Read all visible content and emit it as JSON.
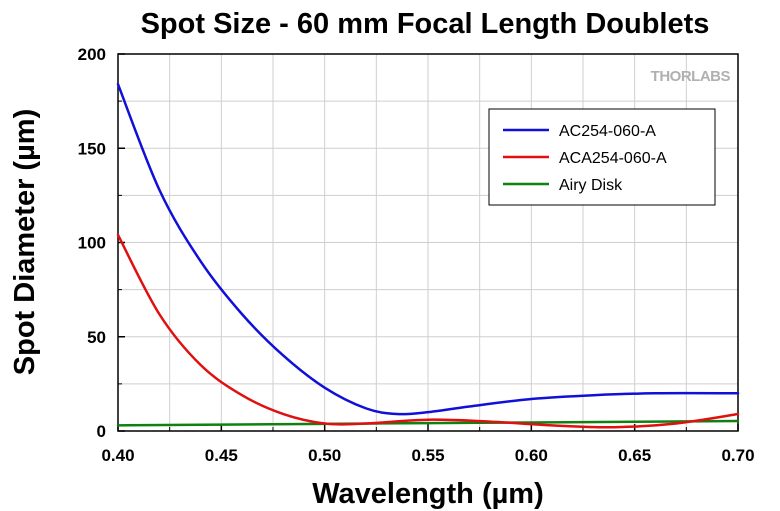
{
  "chart_data": {
    "type": "line",
    "title": "Spot Size - 60 mm Focal Length Doublets",
    "xlabel": "Wavelength (µm)",
    "ylabel": "Spot Diameter (µm)",
    "xlim": [
      0.4,
      0.7
    ],
    "ylim": [
      0,
      200
    ],
    "xticks": [
      "0.40",
      "0.45",
      "0.50",
      "0.55",
      "0.60",
      "0.65",
      "0.70"
    ],
    "yticks": [
      "0",
      "50",
      "100",
      "150",
      "200"
    ],
    "grid": true,
    "legend_position": "top-right",
    "watermark": "THORLABS",
    "series": [
      {
        "name": "AC254-060-A",
        "color": "#1010d8",
        "x": [
          0.4,
          0.42,
          0.44,
          0.46,
          0.48,
          0.5,
          0.52,
          0.535,
          0.55,
          0.57,
          0.6,
          0.63,
          0.66,
          0.7
        ],
        "y": [
          184,
          128,
          90,
          62,
          40,
          23,
          12,
          9,
          10,
          13,
          17,
          19,
          20,
          20
        ]
      },
      {
        "name": "ACA254-060-A",
        "color": "#e01010",
        "x": [
          0.4,
          0.42,
          0.44,
          0.46,
          0.48,
          0.5,
          0.52,
          0.55,
          0.58,
          0.61,
          0.64,
          0.67,
          0.7
        ],
        "y": [
          104,
          62,
          35,
          19,
          9,
          4,
          4,
          6,
          5,
          3,
          2,
          4,
          9
        ]
      },
      {
        "name": "Airy Disk",
        "color": "#108010",
        "x": [
          0.4,
          0.45,
          0.5,
          0.55,
          0.6,
          0.65,
          0.7
        ],
        "y": [
          3,
          3.4,
          3.8,
          4.2,
          4.5,
          4.9,
          5.3
        ]
      }
    ]
  }
}
